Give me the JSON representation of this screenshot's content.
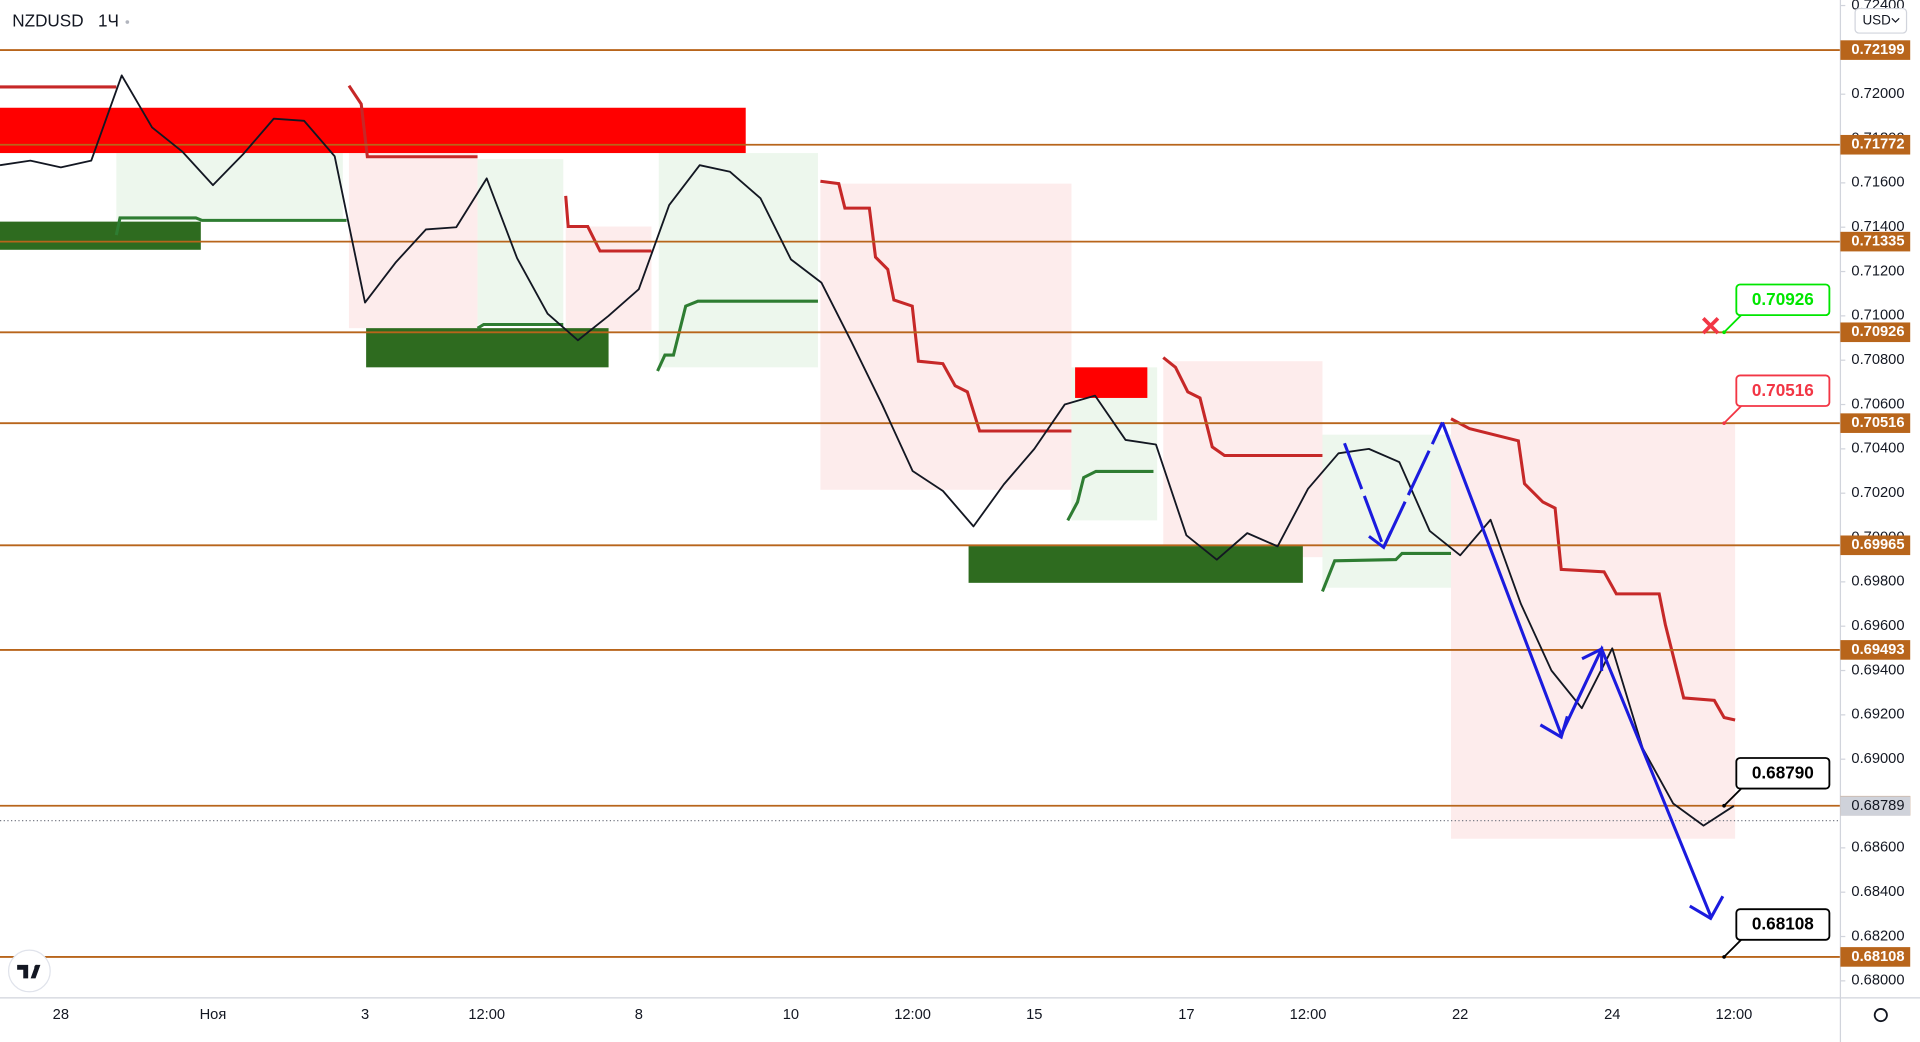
{
  "chart_data": {
    "type": "line",
    "title": "NZDUSD",
    "interval": "1Ч",
    "currency": "USD",
    "categories": [
      null,
      null,
      "28",
      null,
      null,
      null,
      null,
      "Ноя",
      null,
      null,
      null,
      null,
      "3",
      null,
      null,
      null,
      "12:00",
      null,
      null,
      null,
      null,
      "8",
      null,
      null,
      null,
      null,
      "10",
      null,
      null,
      null,
      "12:00",
      null,
      null,
      null,
      "15",
      null,
      null,
      null,
      null,
      "17",
      null,
      null,
      null,
      "12:00",
      null,
      null,
      null,
      null,
      "22",
      null,
      null,
      null,
      null,
      "24",
      null,
      null,
      null,
      "12:00",
      null,
      null,
      null
    ],
    "series": [
      {
        "color": "#131722",
        "values": [
          0.7168,
          0.717,
          0.7167,
          0.717,
          0.72085,
          0.7185,
          0.7174,
          0.7159,
          0.7173,
          0.7189,
          0.7188,
          0.7172,
          0.7106,
          0.7124,
          0.7139,
          0.714,
          0.7162,
          0.7126,
          0.7101,
          0.7089,
          0.71,
          0.7112,
          0.715,
          0.7168,
          0.7165,
          0.7153,
          0.71255,
          0.7115,
          0.7088,
          0.706,
          0.703,
          0.7021,
          0.7005,
          0.7024,
          0.704,
          0.706,
          0.7064,
          0.7044,
          0.7042,
          0.7001,
          0.699,
          0.7002,
          0.6996,
          0.7022,
          0.7038,
          0.704,
          0.7034,
          0.7003,
          0.6992,
          0.7008,
          0.697,
          0.694,
          0.6923,
          0.695,
          0.6905,
          0.688,
          0.687,
          0.68789,
          null,
          null,
          null
        ]
      }
    ],
    "ylim": [
      0.67923,
      0.72425
    ],
    "yticks": [
      {
        "value": 0.68,
        "label": "0.68000"
      },
      {
        "value": 0.682,
        "label": "0.68200"
      },
      {
        "value": 0.684,
        "label": "0.68400"
      },
      {
        "value": 0.686,
        "label": "0.68600"
      },
      {
        "value": 0.688,
        "label": "0.68800"
      },
      {
        "value": 0.69,
        "label": "0.69000"
      },
      {
        "value": 0.692,
        "label": "0.69200"
      },
      {
        "value": 0.694,
        "label": "0.69400"
      },
      {
        "value": 0.696,
        "label": "0.69600"
      },
      {
        "value": 0.698,
        "label": "0.69800"
      },
      {
        "value": 0.7,
        "label": "0.70000"
      },
      {
        "value": 0.702,
        "label": "0.70200"
      },
      {
        "value": 0.704,
        "label": "0.70400"
      },
      {
        "value": 0.706,
        "label": "0.70600"
      },
      {
        "value": 0.708,
        "label": "0.70800"
      },
      {
        "value": 0.71,
        "label": "0.71000"
      },
      {
        "value": 0.712,
        "label": "0.71200"
      },
      {
        "value": 0.714,
        "label": "0.71400"
      },
      {
        "value": 0.716,
        "label": "0.71600"
      },
      {
        "value": 0.718,
        "label": "0.71800"
      },
      {
        "value": 0.72,
        "label": "0.72000"
      },
      {
        "value": 0.722,
        "label": "0.72200"
      },
      {
        "value": 0.724,
        "label": "0.72400"
      }
    ],
    "levels": [
      0.72199,
      0.71772,
      0.71335,
      0.70926,
      0.70516,
      0.69965,
      0.69493,
      {
        "value": 0.6879,
        "label": "0.68790"
      },
      0.68108
    ],
    "level_color": "#b8651b",
    "last_price": 0.68789,
    "callouts": [
      {
        "value": 0.70926,
        "color": "#00e600"
      },
      {
        "value": 0.70516,
        "color": "#f23645"
      },
      {
        "value": 0.6879,
        "label": "0.68790",
        "color": "#000000"
      },
      {
        "value": 0.68108,
        "color": "#000000"
      }
    ]
  }
}
